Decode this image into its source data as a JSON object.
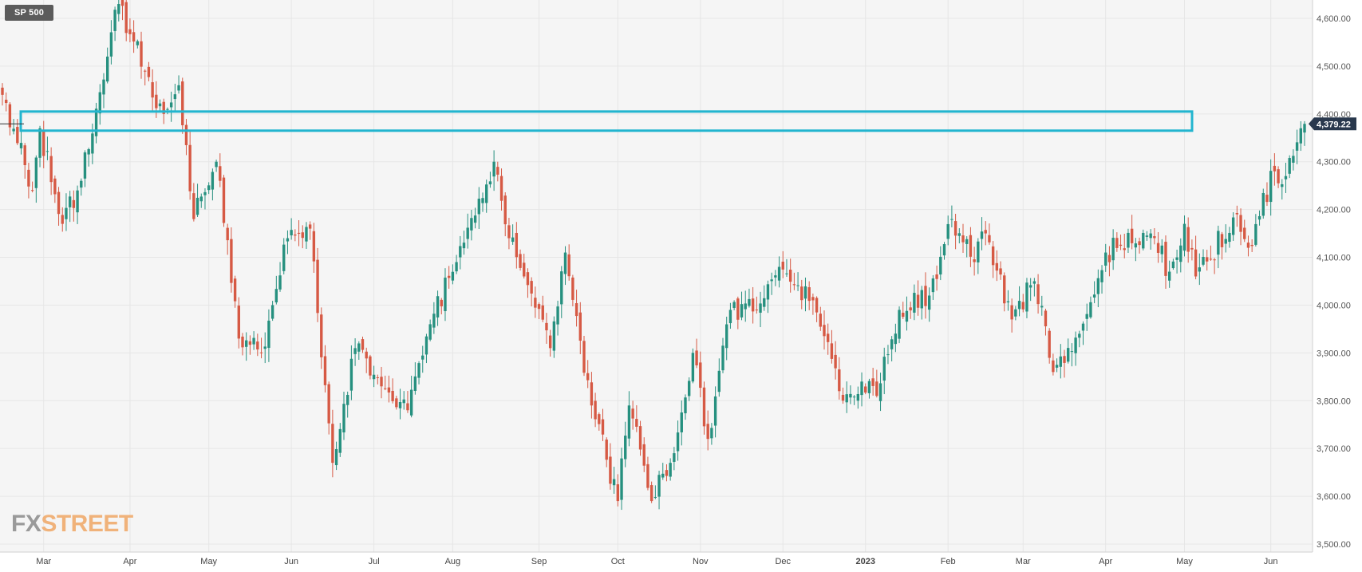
{
  "symbol": "SP 500",
  "watermark": {
    "part1": "FX",
    "part2": "STREET"
  },
  "colors": {
    "up": "#26907f",
    "down": "#d65944",
    "zone": "#22b5cf",
    "grid": "#e6e6e6",
    "plot_bg": "#f5f5f5",
    "axis_text": "#555555",
    "price_tag": "#29384d"
  },
  "chart_data": {
    "type": "candlestick",
    "title": "SP 500",
    "ylim": [
      3490,
      4645
    ],
    "y_ticks": [
      3500,
      3600,
      3700,
      3800,
      3900,
      4000,
      4100,
      4200,
      4300,
      4400,
      4500,
      4600
    ],
    "y_tick_labels": [
      "3,500.00",
      "3,600.00",
      "3,700.00",
      "3,800.00",
      "3,900.00",
      "4,000.00",
      "4,100.00",
      "4,200.00",
      "4,300.00",
      "4,400.00",
      "4,500.00",
      "4,600.00"
    ],
    "x_labels": [
      {
        "label": "Mar",
        "date": "2022-03-01"
      },
      {
        "label": "Apr",
        "date": "2022-04-01"
      },
      {
        "label": "May",
        "date": "2022-05-01"
      },
      {
        "label": "Jun",
        "date": "2022-06-01"
      },
      {
        "label": "Jul",
        "date": "2022-07-01"
      },
      {
        "label": "Aug",
        "date": "2022-08-01"
      },
      {
        "label": "Sep",
        "date": "2022-09-01"
      },
      {
        "label": "Oct",
        "date": "2022-10-01"
      },
      {
        "label": "Nov",
        "date": "2022-11-01"
      },
      {
        "label": "Dec",
        "date": "2022-12-01"
      },
      {
        "label": "2023",
        "date": "2023-01-01",
        "bold": true
      },
      {
        "label": "Feb",
        "date": "2023-02-01"
      },
      {
        "label": "Mar",
        "date": "2023-03-01"
      },
      {
        "label": "Apr",
        "date": "2023-04-01"
      },
      {
        "label": "May",
        "date": "2023-05-01"
      },
      {
        "label": "Jun",
        "date": "2023-06-01"
      }
    ],
    "last_price": 4379.22,
    "last_price_label": "4,379.22",
    "resistance_zone": {
      "low": 4365,
      "high": 4405
    },
    "grid": true,
    "path_keypoints": [
      [
        "2022-02-14",
        4440
      ],
      [
        "2022-02-24",
        4240
      ],
      [
        "2022-02-28",
        4370
      ],
      [
        "2022-03-08",
        4170
      ],
      [
        "2022-03-15",
        4260
      ],
      [
        "2022-03-24",
        4520
      ],
      [
        "2022-03-29",
        4630
      ],
      [
        "2022-04-07",
        4490
      ],
      [
        "2022-04-14",
        4400
      ],
      [
        "2022-04-20",
        4460
      ],
      [
        "2022-04-26",
        4180
      ],
      [
        "2022-05-04",
        4300
      ],
      [
        "2022-05-12",
        3930
      ],
      [
        "2022-05-20",
        3900
      ],
      [
        "2022-05-31",
        4140
      ],
      [
        "2022-06-08",
        4160
      ],
      [
        "2022-06-16",
        3670
      ],
      [
        "2022-06-24",
        3910
      ],
      [
        "2022-07-05",
        3830
      ],
      [
        "2022-07-14",
        3780
      ],
      [
        "2022-07-22",
        3960
      ],
      [
        "2022-08-02",
        4090
      ],
      [
        "2022-08-16",
        4300
      ],
      [
        "2022-08-22",
        4140
      ],
      [
        "2022-08-26",
        4060
      ],
      [
        "2022-09-06",
        3910
      ],
      [
        "2022-09-12",
        4110
      ],
      [
        "2022-09-21",
        3790
      ],
      [
        "2022-09-30",
        3590
      ],
      [
        "2022-10-05",
        3790
      ],
      [
        "2022-10-13",
        3590
      ],
      [
        "2022-10-20",
        3670
      ],
      [
        "2022-10-28",
        3900
      ],
      [
        "2022-11-03",
        3720
      ],
      [
        "2022-11-11",
        3990
      ],
      [
        "2022-11-22",
        3990
      ],
      [
        "2022-11-30",
        4080
      ],
      [
        "2022-12-13",
        4010
      ],
      [
        "2022-12-22",
        3820
      ],
      [
        "2022-12-30",
        3840
      ],
      [
        "2023-01-05",
        3810
      ],
      [
        "2023-01-13",
        3990
      ],
      [
        "2023-01-25",
        4020
      ],
      [
        "2023-02-02",
        4180
      ],
      [
        "2023-02-10",
        4090
      ],
      [
        "2023-02-15",
        4150
      ],
      [
        "2023-02-24",
        3970
      ],
      [
        "2023-03-06",
        4050
      ],
      [
        "2023-03-13",
        3860
      ],
      [
        "2023-03-22",
        3940
      ],
      [
        "2023-03-31",
        4110
      ],
      [
        "2023-04-18",
        4150
      ],
      [
        "2023-04-25",
        4070
      ],
      [
        "2023-05-01",
        4170
      ],
      [
        "2023-05-04",
        4060
      ],
      [
        "2023-05-19",
        4190
      ],
      [
        "2023-05-24",
        4120
      ],
      [
        "2023-06-02",
        4280
      ],
      [
        "2023-06-07",
        4270
      ],
      [
        "2023-06-13",
        4370
      ],
      [
        "2023-06-14",
        4379.22
      ]
    ]
  }
}
